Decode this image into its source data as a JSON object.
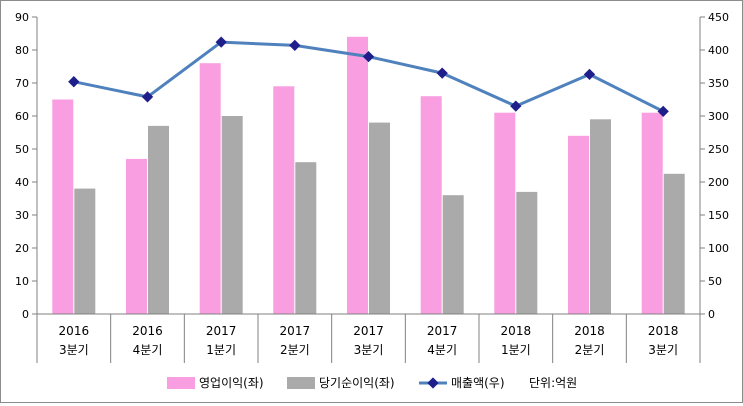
{
  "chart_data": {
    "type": "bar",
    "categories": [
      {
        "year": "2016",
        "quarter": "3분기"
      },
      {
        "year": "2016",
        "quarter": "4분기"
      },
      {
        "year": "2017",
        "quarter": "1분기"
      },
      {
        "year": "2017",
        "quarter": "2분기"
      },
      {
        "year": "2017",
        "quarter": "3분기"
      },
      {
        "year": "2017",
        "quarter": "4분기"
      },
      {
        "year": "2018",
        "quarter": "1분기"
      },
      {
        "year": "2018",
        "quarter": "2분기"
      },
      {
        "year": "2018",
        "quarter": "3분기"
      }
    ],
    "series": [
      {
        "name": "영업이익(좌)",
        "type": "bar",
        "axis": "left",
        "color": "#f99ee0",
        "values": [
          65,
          47,
          76,
          69,
          84,
          66,
          61,
          54,
          61
        ]
      },
      {
        "name": "당기순이익(좌)",
        "type": "bar",
        "axis": "left",
        "color": "#aaaaaa",
        "values": [
          38,
          57,
          60,
          46,
          58,
          36,
          37,
          59,
          42.5
        ]
      },
      {
        "name": "매출액(우)",
        "type": "line",
        "axis": "right",
        "color": "#4f81bd",
        "marker_color": "#1f1f8c",
        "values": [
          352,
          329,
          412,
          407,
          390,
          365,
          315,
          363,
          307
        ]
      }
    ],
    "unit_note": "단위:억원",
    "yleft": {
      "min": 0,
      "max": 90,
      "step": 10
    },
    "yright": {
      "min": 0,
      "max": 450,
      "step": 50
    },
    "legend_position": "bottom",
    "grid": false
  }
}
